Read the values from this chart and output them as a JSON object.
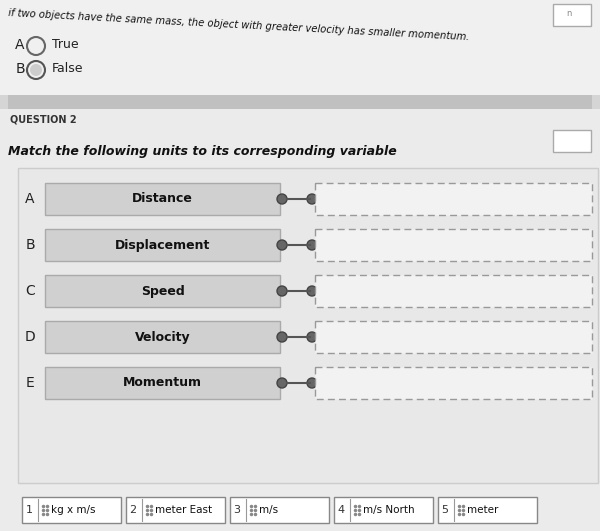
{
  "page_bg": "#e8e8e8",
  "question1_text": "if two objects have the same mass, the object with greater velocity has smaller momentum.",
  "q1_labels": [
    "A",
    "B"
  ],
  "q1_options": [
    "True",
    "False"
  ],
  "question2_label": "QUESTION 2",
  "question2_text": "Match the following units to its corresponding variable",
  "match_labels": [
    "A",
    "B",
    "C",
    "D",
    "E"
  ],
  "match_items": [
    "Distance",
    "Displacement",
    "Speed",
    "Velocity",
    "Momentum"
  ],
  "answer_nums": [
    "1",
    "2",
    "3",
    "4",
    "5"
  ],
  "answer_items": [
    "kg x m/s",
    "meter East",
    "m/s",
    "m/s North",
    "meter"
  ],
  "box_fill": "#d0d0d0",
  "box_edge": "#aaaaaa",
  "right_box_fill": "#f5f5f5",
  "dashed_color": "#999999",
  "white": "#ffffff",
  "dark_gray": "#555555",
  "med_gray": "#888888",
  "text_dark": "#111111",
  "sep_color": "#b0b0b0",
  "score_box_color": "#e0e0e0",
  "section_bg": "#eeeeee"
}
